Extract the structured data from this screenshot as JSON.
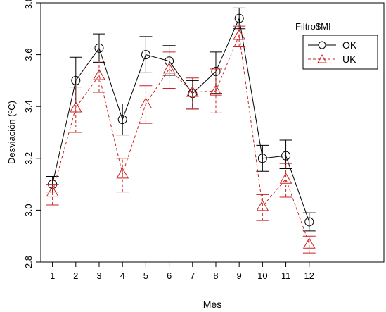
{
  "chart_data": {
    "type": "line",
    "xlabel": "Mes",
    "ylabel": "Desviación (ºC)",
    "x": [
      1,
      2,
      3,
      4,
      5,
      6,
      7,
      8,
      9,
      10,
      11,
      12
    ],
    "xlim": [
      0.5,
      15.2
    ],
    "ylim": [
      2.8,
      3.8
    ],
    "y_ticks": [
      2.8,
      3.0,
      3.2,
      3.4,
      3.6,
      3.8
    ],
    "y_tick_labels": [
      "2.8",
      "3.0",
      "3.2",
      "3.4",
      "3.6",
      "3.8"
    ],
    "x_tick_labels": [
      "1",
      "2",
      "3",
      "4",
      "5",
      "6",
      "7",
      "8",
      "9",
      "10",
      "11",
      "12"
    ],
    "grid": false,
    "legend": {
      "title": "Filtro$MI",
      "position": "top-right",
      "entries": [
        "OK",
        "UK"
      ]
    },
    "series": [
      {
        "name": "OK",
        "color": "#000000",
        "line_style": "solid",
        "marker": "circle",
        "values": [
          3.1,
          3.5,
          3.625,
          3.35,
          3.6,
          3.575,
          3.45,
          3.535,
          3.74,
          3.2,
          3.21,
          2.955
        ],
        "err_low": [
          3.07,
          3.41,
          3.57,
          3.29,
          3.53,
          3.52,
          3.39,
          3.45,
          3.7,
          3.15,
          3.16,
          2.92
        ],
        "err_high": [
          3.13,
          3.59,
          3.68,
          3.41,
          3.67,
          3.635,
          3.5,
          3.61,
          3.78,
          3.25,
          3.27,
          2.99
        ]
      },
      {
        "name": "UK",
        "color": "#cc2222",
        "line_style": "dashed",
        "marker": "triangle",
        "values": [
          3.07,
          3.395,
          3.52,
          3.14,
          3.41,
          3.545,
          3.455,
          3.46,
          3.675,
          3.015,
          3.12,
          2.87
        ],
        "err_low": [
          3.02,
          3.3,
          3.455,
          3.07,
          3.335,
          3.47,
          3.39,
          3.375,
          3.63,
          2.96,
          3.05,
          2.835
        ],
        "err_high": [
          3.1,
          3.475,
          3.575,
          3.2,
          3.48,
          3.61,
          3.51,
          3.545,
          3.71,
          3.06,
          3.18,
          2.9
        ]
      }
    ]
  }
}
